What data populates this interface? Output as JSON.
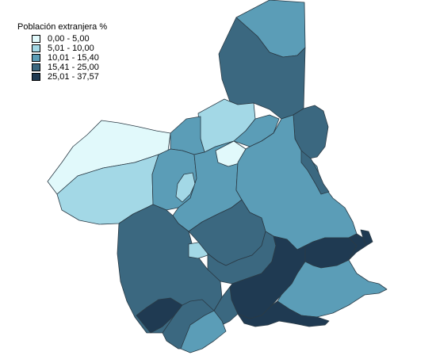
{
  "legend": {
    "title": "Población extranjera %",
    "classes": [
      {
        "label": "0,00 - 5,00",
        "color": "#e1f9fb"
      },
      {
        "label": "5,01 - 10,00",
        "color": "#a3d8e6"
      },
      {
        "label": "10,01 - 15,40",
        "color": "#5b9db7"
      },
      {
        "label": "15,41 - 25,00",
        "color": "#3b6880"
      },
      {
        "label": "25,01 - 37,57",
        "color": "#1f3a52"
      }
    ]
  },
  "map": {
    "border_color": "#2a3a45",
    "regions": [
      {
        "name": "region-northeast-tip",
        "class": 2
      },
      {
        "name": "region-north",
        "class": 3
      },
      {
        "name": "region-northeast",
        "class": 3
      },
      {
        "name": "region-northwest",
        "class": 0
      },
      {
        "name": "region-west",
        "class": 1
      },
      {
        "name": "region-north-center",
        "class": 1
      },
      {
        "name": "region-center-west-a",
        "class": 2
      },
      {
        "name": "region-center-west-b",
        "class": 2
      },
      {
        "name": "region-center-west-lake",
        "class": 1
      },
      {
        "name": "region-center",
        "class": 2
      },
      {
        "name": "region-vega-a",
        "class": 0
      },
      {
        "name": "region-vega-b",
        "class": 0
      },
      {
        "name": "region-vega-c",
        "class": 2
      },
      {
        "name": "region-vega-d",
        "class": 3
      },
      {
        "name": "region-vega-e",
        "class": 0
      },
      {
        "name": "region-vega-f",
        "class": 3
      },
      {
        "name": "region-east",
        "class": 2
      },
      {
        "name": "region-east-strip",
        "class": 3
      },
      {
        "name": "region-southwest",
        "class": 3
      },
      {
        "name": "region-southwest-island",
        "class": 1
      },
      {
        "name": "region-south-center",
        "class": 3
      },
      {
        "name": "region-center-south",
        "class": 3
      },
      {
        "name": "region-mazarron",
        "class": 4
      },
      {
        "name": "region-torre-pacheco",
        "class": 4
      },
      {
        "name": "region-coast-east",
        "class": 4
      },
      {
        "name": "region-coast-tip",
        "class": 4
      },
      {
        "name": "region-cartagena",
        "class": 2
      },
      {
        "name": "region-southwest-dark",
        "class": 4
      },
      {
        "name": "region-south",
        "class": 3
      },
      {
        "name": "region-south-coast",
        "class": 2
      },
      {
        "name": "region-far-south",
        "class": 4
      }
    ]
  }
}
